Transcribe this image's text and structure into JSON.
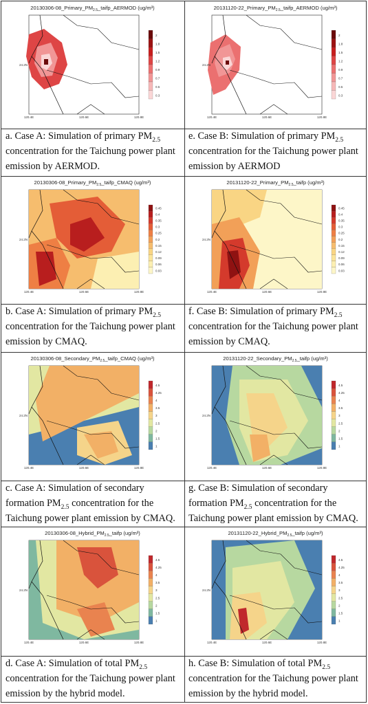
{
  "figures": [
    {
      "id": "a",
      "map_title": "20130306-08_Primary_PM",
      "title_sub": "2.5",
      "map_title_rest": "_taifp_AERMOD (ug/m³)",
      "legend": [
        "2",
        "1.8",
        "1.5",
        "1.2",
        "0.9",
        "0.7",
        "0.5",
        "0.3"
      ],
      "scheme": "red",
      "caption": "a. Case A: Simulation of primary PM",
      "caption_sub": "2.5",
      "caption_rest": " concentration for the Taichung power plant emission by AERMOD."
    },
    {
      "id": "e",
      "map_title": "20131120-22_Primary_PM",
      "title_sub": "2.5",
      "map_title_rest": "_taifp_AERMOD (ug/m³)",
      "legend": [
        "2",
        "1.8",
        "1.5",
        "1.2",
        "0.9",
        "0.7",
        "0.5",
        "0.3"
      ],
      "scheme": "red",
      "caption": "e. Case B: Simulation of primary PM",
      "caption_sub": "2.5",
      "caption_rest": " concentration for the Taichung power plant emission by AERMOD"
    },
    {
      "id": "b",
      "map_title": "20130306-08_Primary_PM",
      "title_sub": "2.5",
      "map_title_rest": "_taifp_CMAQ (ug/m³)",
      "legend": [
        "0.45",
        "0.4",
        "0.35",
        "0.3",
        "0.25",
        "0.2",
        "0.15",
        "0.12",
        "0.09",
        "0.06",
        "0.03"
      ],
      "scheme": "ylred",
      "caption": "b. Case A: Simulation of primary PM",
      "caption_sub": "2.5",
      "caption_rest": " concentration for the Taichung power plant emission by CMAQ."
    },
    {
      "id": "f",
      "map_title": "20131120-22_Primary_PM",
      "title_sub": "2.5",
      "map_title_rest": "_taifp (ug/m³)",
      "legend": [
        "0.45",
        "0.4",
        "0.35",
        "0.3",
        "0.25",
        "0.2",
        "0.15",
        "0.12",
        "0.09",
        "0.06",
        "0.03"
      ],
      "scheme": "ylred",
      "caption": "f. Case B: Simulation of primary PM",
      "caption_sub": "2.5",
      "caption_rest": " concentration for the Taichung power plant emission by CMAQ."
    },
    {
      "id": "c",
      "map_title": "20130306-08_Secondary_PM",
      "title_sub": "2.5",
      "map_title_rest": "_taifp_CMAQ (ug/m³)",
      "legend": [
        "4.5",
        "4.25",
        "4",
        "3.5",
        "3",
        "2.5",
        "2",
        "1.5",
        "1"
      ],
      "scheme": "div",
      "caption": "c. Case A: Simulation of secondary formation PM",
      "caption_sub": "2.5",
      "caption_rest": " concentration for the Taichung power plant emission by CMAQ."
    },
    {
      "id": "g",
      "map_title": "20131120-22_Secondary_PM",
      "title_sub": "2.5",
      "map_title_rest": "_taifp (ug/m³)",
      "legend": [
        "4.5",
        "4.25",
        "4",
        "3.5",
        "3",
        "2.5",
        "2",
        "1.5",
        "1"
      ],
      "scheme": "div",
      "caption": "g. Case B: Simulation of secondary formation PM",
      "caption_sub": "2.5",
      "caption_rest": " concentration for the Taichung power plant emission by CMAQ."
    },
    {
      "id": "d",
      "map_title": "20130306-08_Hybrid_PM",
      "title_sub": "2.5",
      "map_title_rest": "_taifp (ug/m³)",
      "legend": [
        "4.5",
        "4.25",
        "4",
        "3.5",
        "3",
        "2.5",
        "2",
        "1.5",
        "1"
      ],
      "scheme": "div",
      "caption": "d. Case A: Simulation of total PM",
      "caption_sub": "2.5",
      "caption_rest": " concentration for the Taichung power plant emission by the hybrid model."
    },
    {
      "id": "h",
      "map_title": "20131120-22_Hybrid_PM",
      "title_sub": "2.5",
      "map_title_rest": "_taifp (ug/m³)",
      "legend": [
        "4.5",
        "4.25",
        "4",
        "3.5",
        "3",
        "2.5",
        "2",
        "1.5",
        "1"
      ],
      "scheme": "div",
      "caption": "h. Case B: Simulation of total PM",
      "caption_sub": "2.5",
      "caption_rest": " concentration for the Taichung power plant emission by the hybrid model."
    }
  ],
  "axes": {
    "lat_label": "24.2N",
    "lon_labels": [
      "120.4E",
      "120.6E",
      "120.8E"
    ]
  },
  "colors": {
    "red": [
      "#6b0a0a",
      "#9c1212",
      "#c71e1e",
      "#de4545",
      "#eb7070",
      "#f19696",
      "#f6b8b8",
      "#fad6d6"
    ],
    "ylred": [
      "#8f1212",
      "#b81e1e",
      "#d43a2c",
      "#e45d37",
      "#ee7f44",
      "#f2a058",
      "#f6bd6e",
      "#f9d584",
      "#fbe49a",
      "#fcefb2",
      "#fdf6c8"
    ],
    "div": [
      "#c0282c",
      "#d9533c",
      "#e9834f",
      "#f2b066",
      "#f5d48a",
      "#e2e7a2",
      "#b7d8a0",
      "#7fb8a0",
      "#4a7fb0"
    ]
  }
}
